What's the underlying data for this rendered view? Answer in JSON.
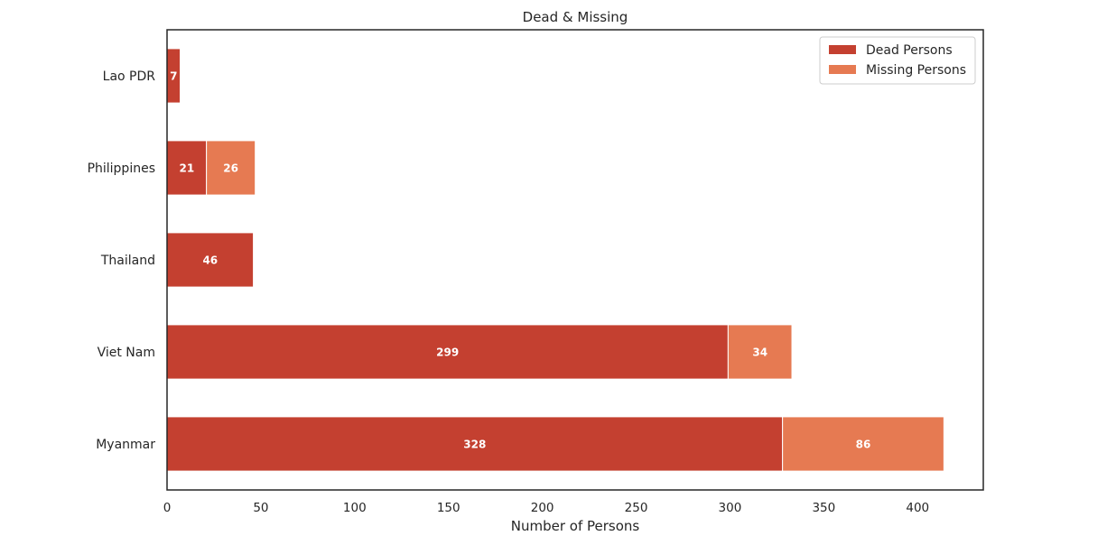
{
  "chart_data": {
    "type": "bar",
    "orientation": "horizontal",
    "stacked": true,
    "title": "Dead & Missing",
    "xlabel": "Number of Persons",
    "ylabel": "",
    "categories": [
      "Myanmar",
      "Viet Nam",
      "Thailand",
      "Philippines",
      "Lao PDR"
    ],
    "series": [
      {
        "name": "Dead Persons",
        "values": [
          328,
          299,
          46,
          21,
          7
        ],
        "color": "#c44030",
        "labels": [
          "328",
          "299",
          "46",
          "21",
          "7"
        ]
      },
      {
        "name": "Missing Persons",
        "values": [
          86,
          34,
          0,
          26,
          0
        ],
        "color": "#e67a52",
        "labels": [
          "86",
          "34",
          "",
          "26",
          ""
        ]
      }
    ],
    "xlim": [
      0,
      435
    ],
    "xticks": [
      0,
      50,
      100,
      150,
      200,
      250,
      300,
      350,
      400
    ],
    "xtick_labels": [
      "0",
      "50",
      "100",
      "150",
      "200",
      "250",
      "300",
      "350",
      "400"
    ],
    "grid": false,
    "legend_position": "top-right"
  }
}
